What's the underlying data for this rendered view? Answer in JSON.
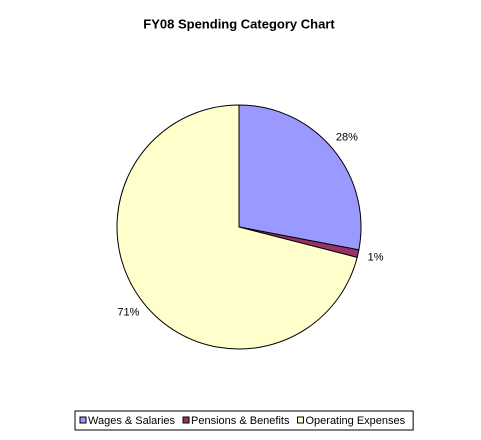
{
  "chart_data": {
    "type": "pie",
    "title": "FY08 Spending Category Chart",
    "categories": [
      "Wages & Salaries",
      "Pensions & Benefits",
      "Operating Expenses"
    ],
    "values": [
      28,
      1,
      71
    ],
    "value_labels": [
      "28%",
      "1%",
      "71%"
    ],
    "colors": [
      "#9999ff",
      "#993366",
      "#ffffcc"
    ],
    "legend": "bottom"
  }
}
